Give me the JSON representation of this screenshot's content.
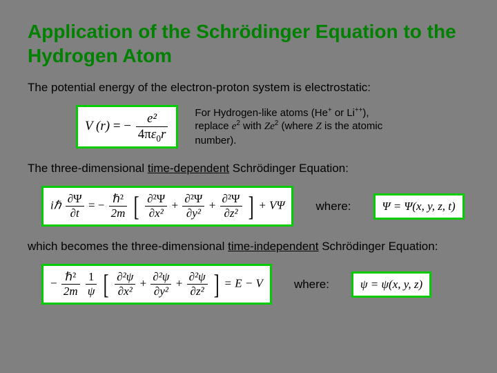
{
  "colors": {
    "background": "#808080",
    "title": "#008000",
    "box_border": "#00cc00",
    "box_bg": "#ffffff",
    "text": "#000000"
  },
  "title": "Application of the Schrödinger Equation to the Hydrogen Atom",
  "p1": "The potential energy of the electron-proton system is electrostatic:",
  "note_prefix": "For Hydrogen-like atoms (He",
  "note_he_sup": "+",
  "note_mid1": " or Li",
  "note_li_sup": "++",
  "note_mid2": "), replace ",
  "note_e2": "e",
  "note_mid3": " with ",
  "note_Z": "Z",
  "note_mid4": " (where ",
  "note_mid5": " is the atomic number).",
  "p2_pre": "The three-dimensional ",
  "p2_u": "time-dependent",
  "p2_post": " Schrödinger Equation:",
  "where": "where:",
  "p3_pre": "which becomes the three-dimensional ",
  "p3_u": "time-independent",
  "p3_post": " Schrödinger Equation:",
  "eq1": {
    "lhs": "V (r)",
    "eq": "= −",
    "num": "e²",
    "den_pre": "4π",
    "den_eps": "ε",
    "den_sub": "0",
    "den_post": "r"
  },
  "eq2": {
    "ih": "iℏ",
    "dpsi_num": "∂Ψ",
    "dpsi_den": "∂t",
    "eq1": "= −",
    "h2_num": "ℏ²",
    "h2_den": "2m",
    "d2psi": "∂²Ψ",
    "dx2": "∂x²",
    "dy2": "∂y²",
    "dz2": "∂z²",
    "plus": "+",
    "vpsi": "+ VΨ"
  },
  "eq2_rhs": {
    "psi": "Ψ = Ψ(x, y, z, t)"
  },
  "eq3": {
    "minus": "−",
    "h2_num": "ℏ²",
    "h2_den": "2m",
    "frac1_num": "1",
    "frac1_den": "ψ",
    "d2psi": "∂²ψ",
    "dx2": "∂x²",
    "dy2": "∂y²",
    "dz2": "∂z²",
    "plus": "+",
    "rhs": "= E − V"
  },
  "eq3_rhs": {
    "psi": "ψ = ψ(x, y, z)"
  }
}
